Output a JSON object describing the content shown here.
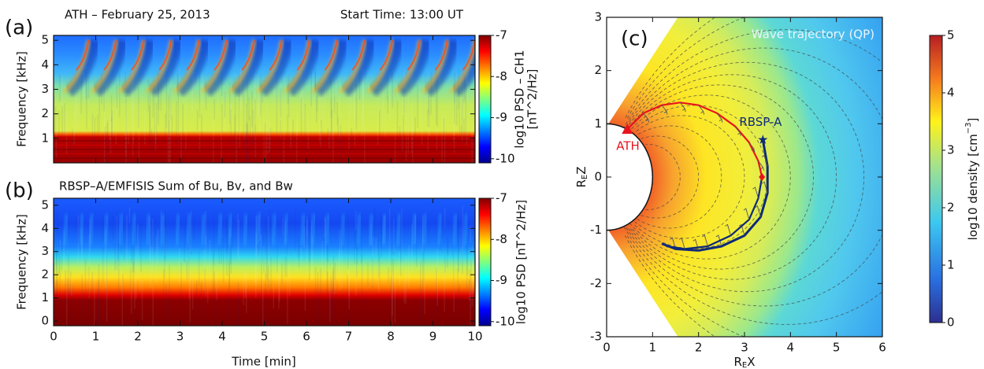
{
  "chart_data": [
    {
      "type": "heatmap",
      "panel_label": "(a)",
      "title": "ATH – February 25, 2013",
      "annotation": "Start Time: 13:00 UT",
      "ylabel": "Frequency [kHz]",
      "xlim": [
        0,
        10
      ],
      "xticks": [
        0,
        1,
        2,
        3,
        4,
        5,
        6,
        7,
        8,
        9,
        10
      ],
      "ylim": [
        0,
        5.2
      ],
      "yticks": [
        1,
        2,
        3,
        4,
        5
      ],
      "colorbar_label": [
        "log10 PSD – CH1",
        "[nT^2/Hz]"
      ],
      "clim": [
        -10.1,
        -7
      ],
      "cticks": [
        -7,
        -8,
        -9,
        -10
      ]
    },
    {
      "type": "heatmap",
      "panel_label": "(b)",
      "title": "RBSP–A/EMFISIS Sum of Bu, Bv, and Bw",
      "xlabel": "Time [min]",
      "ylabel": "Frequency [kHz]",
      "xlim": [
        0,
        10
      ],
      "xticks": [
        0,
        1,
        2,
        3,
        4,
        5,
        6,
        7,
        8,
        9,
        10
      ],
      "ylim": [
        -0.2,
        5.3
      ],
      "yticks": [
        0,
        1,
        2,
        3,
        4,
        5
      ],
      "colorbar_label": [
        "log10 PSD  [nT^2/Hz]"
      ],
      "clim": [
        -10.1,
        -7
      ],
      "cticks": [
        -7,
        -8,
        -9,
        -10
      ]
    },
    {
      "type": "line",
      "panel_label": "(c)",
      "annotations": [
        "Wave trajectory (QP)",
        "ATH",
        "RBSP-A"
      ],
      "xlabel": [
        "R",
        "E",
        "X"
      ],
      "ylabel": [
        "R",
        "E",
        "Z"
      ],
      "xlim": [
        0,
        6
      ],
      "xticks": [
        0,
        1,
        2,
        3,
        4,
        5,
        6
      ],
      "ylim": [
        -3,
        3
      ],
      "yticks": [
        -3,
        -2,
        -1,
        0,
        1,
        2,
        3
      ],
      "colorbar_label": [
        "log10 density [cm",
        "−3",
        "]"
      ],
      "clim": [
        0,
        5
      ],
      "cticks": [
        0,
        1,
        2,
        3,
        4,
        5
      ],
      "series": [
        {
          "color": "#e8141c",
          "x": [
            0.45,
            0.8,
            1.2,
            1.6,
            2.0,
            2.4,
            2.8,
            3.1,
            3.3,
            3.38
          ],
          "values": [
            0.9,
            1.2,
            1.35,
            1.4,
            1.35,
            1.2,
            0.95,
            0.65,
            0.3,
            0.0
          ]
        },
        {
          "color": "#0d2a7a",
          "x": [
            3.4,
            3.5,
            3.5,
            3.35,
            3.0,
            2.5,
            2.0,
            1.5,
            1.2
          ],
          "values": [
            0.7,
            0.2,
            -0.3,
            -0.75,
            -1.1,
            -1.3,
            -1.38,
            -1.35,
            -1.25
          ]
        },
        {
          "color": "#0d2a7a",
          "x": [
            3.38,
            3.3,
            3.1,
            2.7,
            2.2,
            1.7,
            1.3
          ],
          "values": [
            0.0,
            -0.4,
            -0.8,
            -1.1,
            -1.3,
            -1.35,
            -1.3
          ]
        }
      ]
    }
  ]
}
